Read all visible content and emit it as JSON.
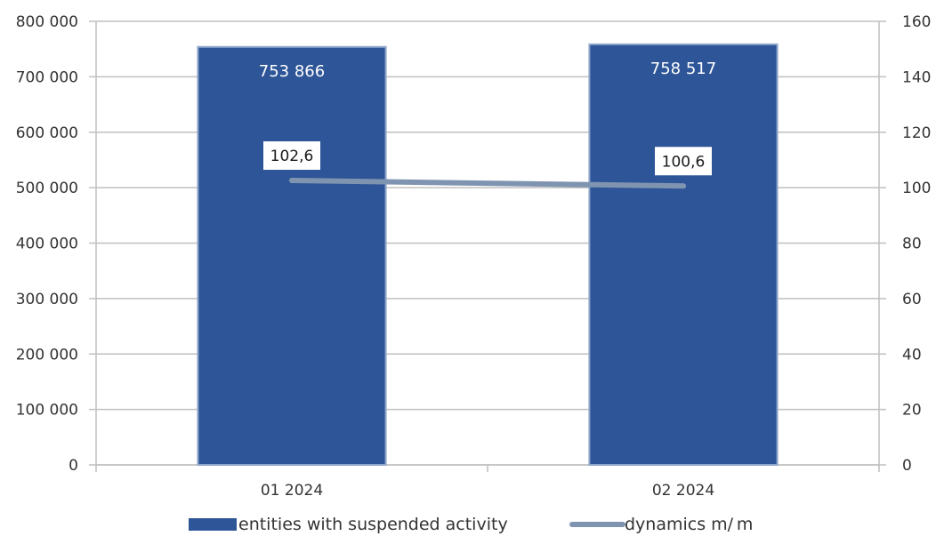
{
  "chart_data": {
    "type": "bar",
    "categories": [
      "01 2024",
      "02 2024"
    ],
    "series": [
      {
        "name": "entities with suspended activity",
        "type": "bar",
        "axis": "left",
        "values": [
          753866,
          758517
        ],
        "labels": [
          "753 866",
          "758 517"
        ],
        "color": "#2E5597"
      },
      {
        "name": "dynamics m/m",
        "type": "line",
        "axis": "right",
        "values": [
          102.6,
          100.6
        ],
        "labels": [
          "102,6",
          "100,6"
        ],
        "color": "#7F94B0"
      }
    ],
    "y_left": {
      "ylim": [
        0,
        800000
      ],
      "ticks": [
        0,
        100000,
        200000,
        300000,
        400000,
        500000,
        600000,
        700000,
        800000
      ],
      "tick_labels": [
        "0",
        "100 000",
        "200 000",
        "300 000",
        "400 000",
        "500 000",
        "600 000",
        "700 000",
        "800 000"
      ]
    },
    "y_right": {
      "ylim": [
        0,
        160
      ],
      "ticks": [
        0,
        20,
        40,
        60,
        80,
        100,
        120,
        140,
        160
      ],
      "tick_labels": [
        "0",
        "20",
        "40",
        "60",
        "80",
        "100",
        "120",
        "140",
        "160"
      ]
    },
    "grid": true,
    "legend_position": "bottom",
    "legend": [
      "entities with suspended activity",
      "dynamics m/ m"
    ],
    "title": "",
    "xlabel": "",
    "ylabel": ""
  }
}
